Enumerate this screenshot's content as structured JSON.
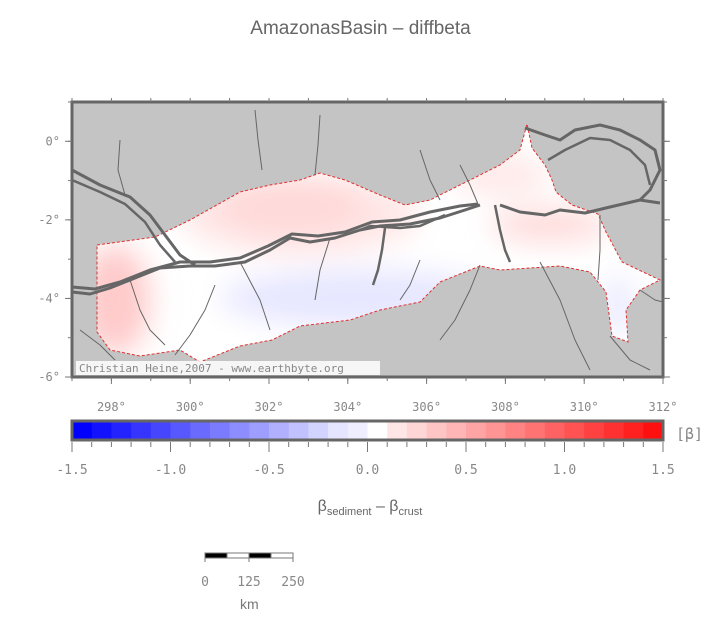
{
  "title": "AmazonasBasin – diffbeta",
  "map": {
    "lon_range": [
      297,
      312
    ],
    "lat_range": [
      -6,
      1
    ],
    "lon_ticks": [
      "298°",
      "300°",
      "302°",
      "304°",
      "306°",
      "308°",
      "310°",
      "312°"
    ],
    "lat_ticks": [
      "0°",
      "-2°",
      "-4°",
      "-6°"
    ],
    "credit": "Christian Heine,2007 - www.earthbyte.org",
    "land_color": "#c4c4c4",
    "basin_outline_color": "#e03030",
    "river_color": "#666666"
  },
  "colorbar": {
    "min": -1.5,
    "max": 1.5,
    "step": 0.1,
    "tick_labels": [
      "-1.5",
      "-1.0",
      "-0.5",
      "0.0",
      "0.5",
      "1.0",
      "1.5"
    ],
    "unit": "[β]",
    "label_main1": "β",
    "label_sub1": "sediment",
    "label_mid": " – β",
    "label_sub2": "crust",
    "low_color": "#0000ff",
    "mid_color": "#ffffff",
    "high_color": "#ff1010"
  },
  "scalebar": {
    "labels": [
      "0",
      "125",
      "250"
    ],
    "unit": "km"
  }
}
